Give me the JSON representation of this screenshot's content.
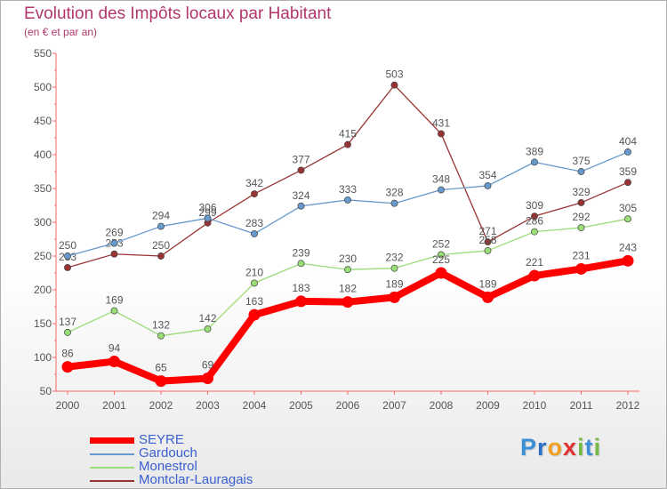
{
  "header": {
    "title": "Evolution des Impôts locaux par Habitant",
    "subtitle": "(en € et par an)"
  },
  "chart_data": {
    "type": "line",
    "title": "Evolution des Impôts locaux par Habitant",
    "subtitle": "(en € et par an)",
    "xlabel": "",
    "ylabel": "",
    "ylim": [
      50,
      550
    ],
    "y_ticks": [
      50,
      100,
      150,
      200,
      250,
      300,
      350,
      400,
      450,
      500,
      550
    ],
    "x": [
      "2000",
      "2001",
      "2002",
      "2003",
      "2004",
      "2005",
      "2006",
      "2007",
      "2008",
      "2009",
      "2010",
      "2011",
      "2012"
    ],
    "grid": false,
    "legend_position": "bottom-left",
    "series": [
      {
        "name": "SEYRE",
        "color": "#ff0000",
        "values": [
          86,
          94,
          65,
          69,
          163,
          183,
          182,
          189,
          225,
          189,
          221,
          231,
          243
        ]
      },
      {
        "name": "Gardouch",
        "color": "#6699cc",
        "values": [
          250,
          269,
          294,
          306,
          283,
          324,
          333,
          328,
          348,
          354,
          389,
          375,
          404
        ]
      },
      {
        "name": "Monestrol",
        "color": "#99dd77",
        "values": [
          137,
          169,
          132,
          142,
          210,
          239,
          230,
          232,
          252,
          258,
          286,
          292,
          305
        ]
      },
      {
        "name": "Montclar-Lauragais",
        "color": "#993333",
        "values": [
          233,
          253,
          250,
          299,
          342,
          377,
          415,
          503,
          431,
          271,
          309,
          329,
          359
        ]
      }
    ]
  },
  "logo": {
    "letters": [
      {
        "char": "P",
        "color": "#3a8fd6"
      },
      {
        "char": "r",
        "color": "#2e6ec4"
      },
      {
        "char": "o",
        "color": "#f0a020"
      },
      {
        "char": "x",
        "color": "#e03030"
      },
      {
        "char": "i",
        "color": "#78b844"
      },
      {
        "char": "t",
        "color": "#3a8fd6"
      },
      {
        "char": "i",
        "color": "#78b844"
      }
    ]
  }
}
